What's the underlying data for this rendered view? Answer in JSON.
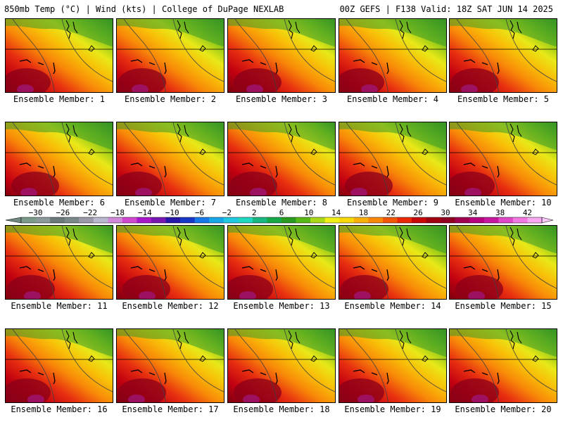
{
  "header": {
    "left_title": "850mb Temp (°C) | Wind (kts) | College of DuPage NEXLAB",
    "right_title": "00Z GEFS | F138 Valid: 18Z SAT JUN 14 2025"
  },
  "members": [
    {
      "label": "Ensemble Member: 1"
    },
    {
      "label": "Ensemble Member: 2"
    },
    {
      "label": "Ensemble Member: 3"
    },
    {
      "label": "Ensemble Member: 4"
    },
    {
      "label": "Ensemble Member: 5"
    },
    {
      "label": "Ensemble Member: 6"
    },
    {
      "label": "Ensemble Member: 7"
    },
    {
      "label": "Ensemble Member: 8"
    },
    {
      "label": "Ensemble Member: 9"
    },
    {
      "label": "Ensemble Member: 10"
    },
    {
      "label": "Ensemble Member: 11"
    },
    {
      "label": "Ensemble Member: 12"
    },
    {
      "label": "Ensemble Member: 13"
    },
    {
      "label": "Ensemble Member: 14"
    },
    {
      "label": "Ensemble Member: 15"
    },
    {
      "label": "Ensemble Member: 16"
    },
    {
      "label": "Ensemble Member: 17"
    },
    {
      "label": "Ensemble Member: 18"
    },
    {
      "label": "Ensemble Member: 19"
    },
    {
      "label": "Ensemble Member: 20"
    }
  ],
  "colorbar": {
    "ticks": [
      "−30",
      "−26",
      "−22",
      "−18",
      "−14",
      "−10",
      "−6",
      "−2",
      "2",
      "6",
      "10",
      "14",
      "18",
      "22",
      "26",
      "30",
      "34",
      "38",
      "42"
    ],
    "colors": [
      "#7a9a8a",
      "#8a9a9a",
      "#6a7a7a",
      "#7a8a8a",
      "#9a9aaa",
      "#b8b8d0",
      "#d088d8",
      "#d048d0",
      "#a818c8",
      "#7818b0",
      "#2818a8",
      "#1838c8",
      "#1878e8",
      "#18a8e8",
      "#20c8e0",
      "#20d8c0",
      "#18b880",
      "#18a848",
      "#2a9a20",
      "#58b818",
      "#a8d818",
      "#f0f018",
      "#f8d808",
      "#f8b008",
      "#f88808",
      "#f05808",
      "#e82808",
      "#c80808",
      "#a00010",
      "#900020",
      "#a00050",
      "#b80080",
      "#c818a0",
      "#e048c8",
      "#f078e0",
      "#f8a8f0"
    ]
  }
}
